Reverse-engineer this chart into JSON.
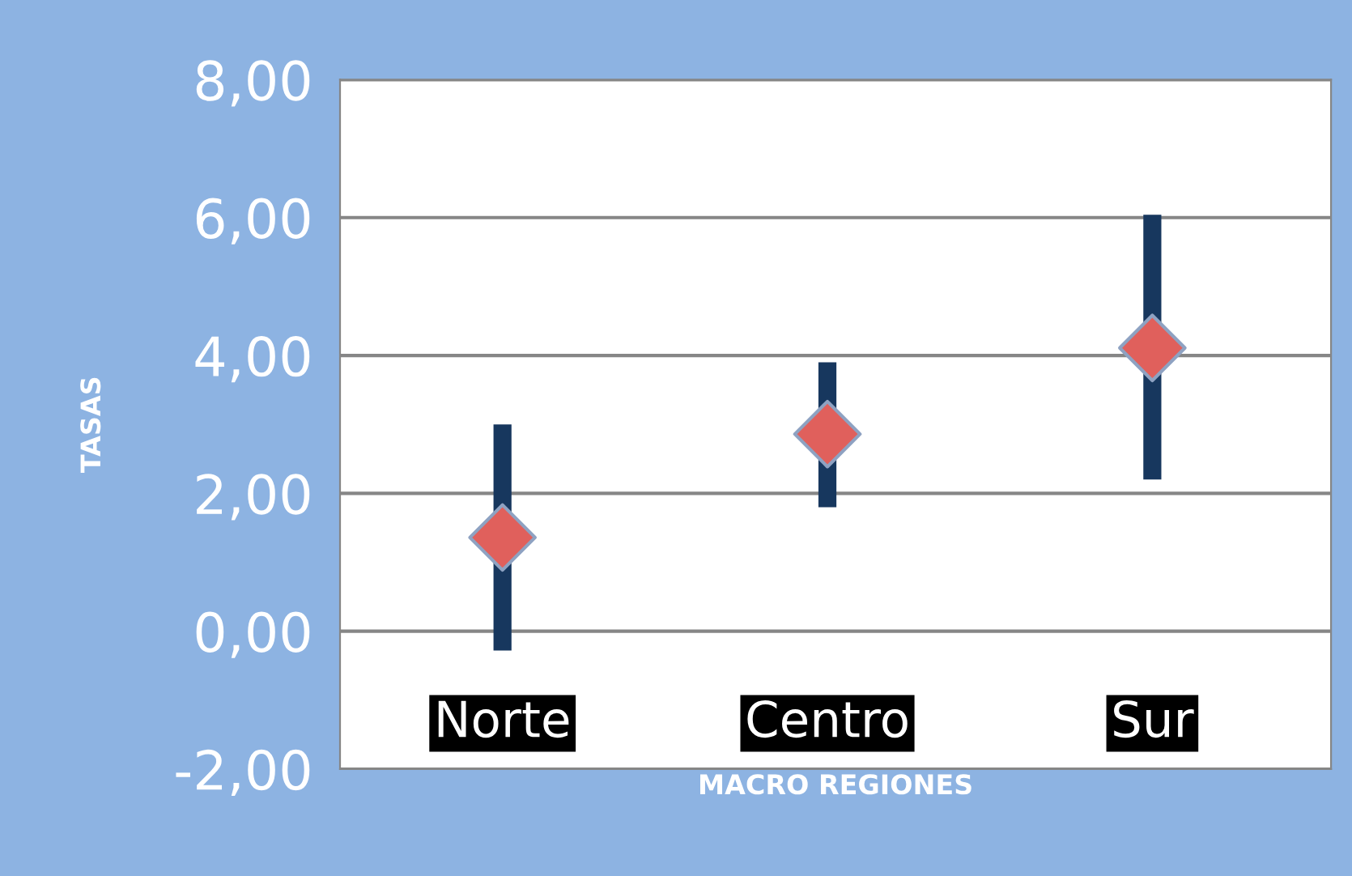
{
  "chart_data": {
    "type": "scatter",
    "xlabel": "MACRO REGIONES",
    "ylabel": "TASAS",
    "categories": [
      "Norte",
      "Centro",
      "Sur"
    ],
    "series": [
      {
        "color": "#e0605c",
        "values": [
          1.36,
          2.86,
          4.11
        ],
        "errors": [
          [
            -0.28,
            3.0
          ],
          [
            1.8,
            3.9
          ],
          [
            2.2,
            6.04
          ]
        ]
      }
    ],
    "marker": "diamond",
    "ylim": [
      -2,
      8
    ],
    "yticks": [
      {
        "value": -2,
        "label": "-2,00"
      },
      {
        "value": 0,
        "label": "0,00"
      },
      {
        "value": 2,
        "label": "2,00"
      },
      {
        "value": 4,
        "label": "4,00"
      },
      {
        "value": 6,
        "label": "6,00"
      },
      {
        "value": 8,
        "label": "8,00"
      }
    ],
    "grid": "y"
  }
}
